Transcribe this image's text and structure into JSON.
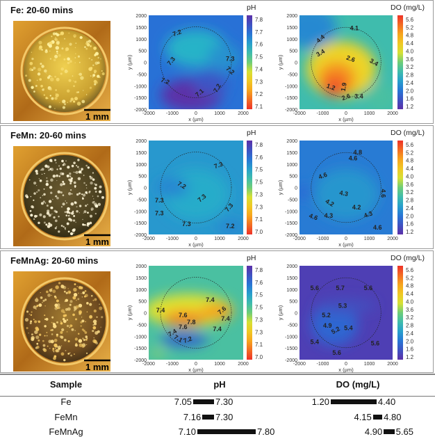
{
  "panels": [
    {
      "title": "Fe: 20-60 mins",
      "scale_label": "1 mm",
      "photo_style": "fe",
      "ph_map": {
        "colorbar_title": "pH",
        "colorbar_ticks": [
          "7.8",
          "7.7",
          "7.6",
          "7.5",
          "7.4",
          "7.3",
          "7.2",
          "7.1"
        ],
        "range": [
          7.1,
          7.85
        ],
        "base": 7.24,
        "hotspots": [
          {
            "x": 0,
            "y": 600,
            "rx": 1300,
            "ry": 800,
            "v": 7.36
          },
          {
            "x": 1200,
            "y": 200,
            "rx": 700,
            "ry": 600,
            "v": 7.3
          },
          {
            "x": -200,
            "y": -1400,
            "rx": 1300,
            "ry": 700,
            "v": 7.1
          },
          {
            "x": 600,
            "y": -900,
            "rx": 700,
            "ry": 500,
            "v": 7.18
          }
        ],
        "labels": [
          {
            "t": "7.2",
            "x": -800,
            "y": 1250,
            "r": -20
          },
          {
            "t": "7.3",
            "x": -1050,
            "y": 50,
            "r": -50
          },
          {
            "t": "7.3",
            "x": 1450,
            "y": 150,
            "r": 0
          },
          {
            "t": "7.2",
            "x": 1450,
            "y": -350,
            "r": 40
          },
          {
            "t": "7.2",
            "x": -1300,
            "y": -800,
            "r": 20
          },
          {
            "t": "7.1",
            "x": 150,
            "y": -1300,
            "r": -40
          },
          {
            "t": "7.2",
            "x": 900,
            "y": -1100,
            "r": -60
          }
        ]
      },
      "do_map": {
        "colorbar_title": "DO (mg/L)",
        "colorbar_ticks": [
          "5.6",
          "5.2",
          "4.8",
          "4.4",
          "4.0",
          "3.6",
          "3.2",
          "2.8",
          "2.4",
          "2.0",
          "1.6",
          "1.2"
        ],
        "range": [
          1.2,
          5.7
        ],
        "base": 3.9,
        "hotspots": [
          {
            "x": -1600,
            "y": 1500,
            "rx": 1200,
            "ry": 900,
            "v": 4.6
          },
          {
            "x": -200,
            "y": -300,
            "rx": 1500,
            "ry": 1200,
            "v": 2.7
          },
          {
            "x": -400,
            "y": -700,
            "rx": 800,
            "ry": 700,
            "v": 1.9
          },
          {
            "x": -500,
            "y": -1050,
            "rx": 500,
            "ry": 400,
            "v": 1.4
          },
          {
            "x": 1500,
            "y": -1500,
            "rx": 700,
            "ry": 600,
            "v": 3.8
          }
        ],
        "labels": [
          {
            "t": "4.1",
            "x": 350,
            "y": 1450,
            "r": 0
          },
          {
            "t": "4.4",
            "x": -1100,
            "y": 1000,
            "r": -40
          },
          {
            "t": "3.4",
            "x": -1100,
            "y": 400,
            "r": -30
          },
          {
            "t": "2.6",
            "x": 200,
            "y": 150,
            "r": 20
          },
          {
            "t": "3.4",
            "x": 1200,
            "y": 0,
            "r": 30
          },
          {
            "t": "1.2",
            "x": -650,
            "y": -1050,
            "r": 20
          },
          {
            "t": "1.9",
            "x": -100,
            "y": -1050,
            "r": -80
          },
          {
            "t": "2.6",
            "x": 0,
            "y": -1480,
            "r": -20
          },
          {
            "t": "3.4",
            "x": 550,
            "y": -1450,
            "r": 0
          }
        ]
      }
    },
    {
      "title": "FeMn: 20-60 mins",
      "scale_label": "1 mm",
      "photo_style": "femn",
      "ph_map": {
        "colorbar_title": "pH",
        "colorbar_ticks": [
          "7.8",
          "7.6",
          "7.5",
          "7.5",
          "7.3",
          "7.3",
          "7.1",
          "7.0"
        ],
        "range": [
          7.0,
          7.85
        ],
        "base": 7.24,
        "hotspots": [
          {
            "x": 0,
            "y": -300,
            "rx": 1400,
            "ry": 1100,
            "v": 7.28
          },
          {
            "x": -1000,
            "y": 0,
            "rx": 700,
            "ry": 400,
            "v": 7.2
          },
          {
            "x": 1500,
            "y": -1700,
            "rx": 600,
            "ry": 300,
            "v": 7.2
          }
        ],
        "labels": [
          {
            "t": "7.3",
            "x": 950,
            "y": 950,
            "r": -20
          },
          {
            "t": "7.2",
            "x": -600,
            "y": 100,
            "r": 30
          },
          {
            "t": "7.3",
            "x": 250,
            "y": -450,
            "r": -40
          },
          {
            "t": "7.3",
            "x": -1550,
            "y": -550,
            "r": 0
          },
          {
            "t": "7.3",
            "x": -1550,
            "y": -1100,
            "r": 0
          },
          {
            "t": "7.3",
            "x": 1400,
            "y": -850,
            "r": -50
          },
          {
            "t": "7.3",
            "x": -400,
            "y": -1550,
            "r": 0
          },
          {
            "t": "7.2",
            "x": 1450,
            "y": -1650,
            "r": 0
          }
        ]
      },
      "do_map": {
        "colorbar_title": "DO (mg/L)",
        "colorbar_ticks": [
          "5.6",
          "5.2",
          "4.8",
          "4.4",
          "4.0",
          "3.6",
          "3.2",
          "2.8",
          "2.4",
          "2.0",
          "1.6",
          "1.2"
        ],
        "range": [
          1.2,
          5.7
        ],
        "base": 4.75,
        "hotspots": [
          {
            "x": 0,
            "y": -300,
            "rx": 1400,
            "ry": 1100,
            "v": 4.45
          },
          {
            "x": -1800,
            "y": -200,
            "rx": 500,
            "ry": 250,
            "v": 4.95
          }
        ],
        "labels": [
          {
            "t": "4.8",
            "x": 500,
            "y": 1500,
            "r": 0
          },
          {
            "t": "4.6",
            "x": 300,
            "y": 1250,
            "r": 0
          },
          {
            "t": "4.6",
            "x": -1000,
            "y": 500,
            "r": -20
          },
          {
            "t": "4.3",
            "x": -100,
            "y": -250,
            "r": 10
          },
          {
            "t": "4.6",
            "x": 1600,
            "y": -250,
            "r": 90
          },
          {
            "t": "4.2",
            "x": -700,
            "y": -650,
            "r": 30
          },
          {
            "t": "4.2",
            "x": 450,
            "y": -850,
            "r": 0
          },
          {
            "t": "4.6",
            "x": -1400,
            "y": -1250,
            "r": 20
          },
          {
            "t": "4.3",
            "x": -750,
            "y": -1200,
            "r": 0
          },
          {
            "t": "4.3",
            "x": 950,
            "y": -1150,
            "r": -20
          },
          {
            "t": "4.6",
            "x": 1350,
            "y": -1700,
            "r": 0
          }
        ]
      }
    },
    {
      "title": "FeMnAg: 20-60 mins",
      "scale_label": "1 mm",
      "photo_style": "femnag",
      "ph_map": {
        "colorbar_title": "pH",
        "colorbar_ticks": [
          "7.8",
          "7.6",
          "7.5",
          "7.5",
          "7.3",
          "7.3",
          "7.1",
          "7.0"
        ],
        "range": [
          7.0,
          7.85
        ],
        "base": 7.36,
        "hotspots": [
          {
            "x": -300,
            "y": 100,
            "rx": 1900,
            "ry": 700,
            "v": 7.52
          },
          {
            "x": -500,
            "y": -250,
            "rx": 900,
            "ry": 350,
            "v": 7.72
          },
          {
            "x": 900,
            "y": 50,
            "rx": 700,
            "ry": 300,
            "v": 7.7
          },
          {
            "x": -500,
            "y": -1150,
            "rx": 1000,
            "ry": 300,
            "v": 7.12
          },
          {
            "x": -1600,
            "y": -1700,
            "rx": 300,
            "ry": 100,
            "v": 7.5
          }
        ],
        "labels": [
          {
            "t": "7.4",
            "x": 600,
            "y": 550,
            "r": 0
          },
          {
            "t": "7.4",
            "x": -1500,
            "y": 100,
            "r": 0
          },
          {
            "t": "7.6",
            "x": -550,
            "y": -100,
            "r": 0
          },
          {
            "t": "7.6",
            "x": 1100,
            "y": 100,
            "r": -40
          },
          {
            "t": "7.8",
            "x": -200,
            "y": -400,
            "r": 0
          },
          {
            "t": "7.4",
            "x": 1250,
            "y": -250,
            "r": 0
          },
          {
            "t": "7.6",
            "x": -550,
            "y": -600,
            "r": 0
          },
          {
            "t": "7.4",
            "x": -1000,
            "y": -850,
            "r": -30
          },
          {
            "t": "7.4",
            "x": 900,
            "y": -700,
            "r": 0
          },
          {
            "t": "7.1",
            "x": -750,
            "y": -1100,
            "r": 30
          },
          {
            "t": "7.2",
            "x": -350,
            "y": -1150,
            "r": -20
          }
        ]
      },
      "do_map": {
        "colorbar_title": "DO (mg/L)",
        "colorbar_ticks": [
          "5.6",
          "5.2",
          "4.8",
          "4.4",
          "4.0",
          "3.6",
          "3.2",
          "2.8",
          "2.4",
          "2.0",
          "1.6",
          "1.2"
        ],
        "range": [
          1.2,
          5.7
        ],
        "base": 5.5,
        "hotspots": [
          {
            "x": -500,
            "y": -500,
            "rx": 1000,
            "ry": 900,
            "v": 5.0
          },
          {
            "x": 0,
            "y": 300,
            "rx": 1300,
            "ry": 300,
            "v": 5.3
          }
        ],
        "labels": [
          {
            "t": "5.6",
            "x": -1350,
            "y": 1050,
            "r": 0
          },
          {
            "t": "5.7",
            "x": -250,
            "y": 1050,
            "r": 0
          },
          {
            "t": "5.6",
            "x": 950,
            "y": 1050,
            "r": 0
          },
          {
            "t": "5.3",
            "x": -150,
            "y": 300,
            "r": 0
          },
          {
            "t": "5.2",
            "x": -850,
            "y": -100,
            "r": 0
          },
          {
            "t": "4.9",
            "x": -800,
            "y": -550,
            "r": 0
          },
          {
            "t": "5.2",
            "x": -450,
            "y": -750,
            "r": -30
          },
          {
            "t": "5.4",
            "x": 100,
            "y": -650,
            "r": 0
          },
          {
            "t": "5.4",
            "x": -1350,
            "y": -1250,
            "r": 0
          },
          {
            "t": "5.6",
            "x": 1250,
            "y": -1300,
            "r": 0
          },
          {
            "t": "5.6",
            "x": -400,
            "y": -1700,
            "r": 0
          }
        ]
      }
    }
  ],
  "axes": {
    "ticks": [
      "2000",
      "1500",
      "1000",
      "500",
      "0",
      "-500",
      "-1000",
      "-1500",
      "-2000"
    ],
    "xticks": [
      "-2000",
      "-1000",
      "0",
      "1000",
      "2000"
    ],
    "xlabel": "x (µm)",
    "ylabel": "y (µm)"
  },
  "table": {
    "headers": [
      "Sample",
      "pH",
      "DO (mg/L)"
    ],
    "rows": [
      {
        "sample": "Fe",
        "ph": [
          7.05,
          7.3
        ],
        "ph_text": [
          "7.05",
          "7.30"
        ],
        "do": [
          1.2,
          4.4
        ],
        "do_text": [
          "1.20",
          "4.40"
        ]
      },
      {
        "sample": "FeMn",
        "ph": [
          7.16,
          7.3
        ],
        "ph_text": [
          "7.16",
          "7.30"
        ],
        "do": [
          4.15,
          4.8
        ],
        "do_text": [
          "4.15",
          "4.80"
        ]
      },
      {
        "sample": "FeMnAg",
        "ph": [
          7.1,
          7.8
        ],
        "ph_text": [
          "7.10",
          "7.80"
        ],
        "do": [
          4.9,
          5.65
        ],
        "do_text": [
          "4.90",
          "5.65"
        ]
      }
    ]
  }
}
